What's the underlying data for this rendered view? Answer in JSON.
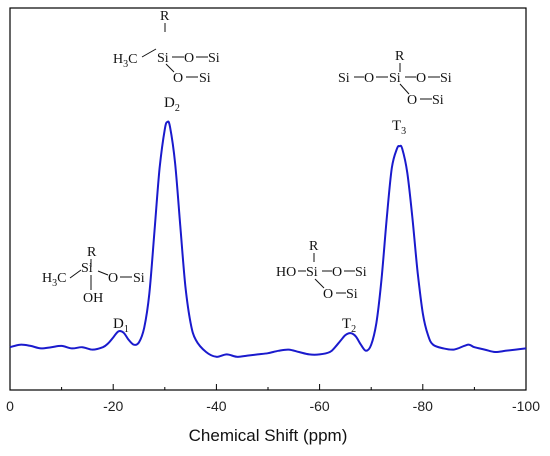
{
  "chart_data": {
    "type": "line",
    "title": "",
    "xlabel": "Chemical Shift (ppm)",
    "ylabel": "",
    "xlim": [
      0,
      -100
    ],
    "ylim": [
      0,
      1
    ],
    "x_reversed": true,
    "grid": false,
    "x_ticks": [
      0,
      -20,
      -40,
      -60,
      -80,
      -100
    ],
    "x_tick_labels": [
      "0",
      "-20",
      "-40",
      "-60",
      "-80",
      "-100"
    ],
    "line_color": "#1a1acd",
    "series": [
      {
        "x": [
          0,
          -2,
          -4,
          -6,
          -8,
          -10,
          -12,
          -14,
          -16,
          -18,
          -19,
          -20,
          -21,
          -22,
          -23,
          -24,
          -25,
          -26,
          -27,
          -28,
          -29,
          -30,
          -30.5,
          -31,
          -32,
          -33,
          -34,
          -35,
          -36,
          -38,
          -40,
          -42,
          -44,
          -46,
          -48,
          -50,
          -52,
          -54,
          -56,
          -58,
          -60,
          -62,
          -63,
          -64,
          -65,
          -66,
          -67,
          -68,
          -69,
          -70,
          -71,
          -72,
          -73,
          -74,
          -75,
          -75.5,
          -76,
          -77,
          -78,
          -79,
          -80,
          -81,
          -82,
          -84,
          -86,
          -88,
          -89,
          -90,
          -92,
          -94,
          -96,
          -98,
          -100
        ],
        "y": [
          0.02,
          0.03,
          0.025,
          0.015,
          0.02,
          0.025,
          0.015,
          0.02,
          0.01,
          0.02,
          0.035,
          0.06,
          0.085,
          0.08,
          0.05,
          0.03,
          0.04,
          0.1,
          0.24,
          0.5,
          0.76,
          0.92,
          0.95,
          0.93,
          0.78,
          0.52,
          0.27,
          0.12,
          0.05,
          0.0,
          -0.02,
          -0.01,
          -0.02,
          -0.015,
          -0.01,
          -0.005,
          0.005,
          0.01,
          0.0,
          -0.01,
          -0.01,
          0.0,
          0.02,
          0.045,
          0.07,
          0.078,
          0.065,
          0.03,
          0.005,
          0.03,
          0.12,
          0.3,
          0.55,
          0.76,
          0.84,
          0.85,
          0.84,
          0.74,
          0.55,
          0.33,
          0.16,
          0.07,
          0.03,
          0.015,
          0.01,
          0.025,
          0.03,
          0.02,
          0.01,
          0.0,
          0.005,
          0.01,
          0.015
        ]
      }
    ],
    "annotations": {
      "d1": {
        "label": "D",
        "sub": "1",
        "x": -21,
        "structure": {
          "r": "R",
          "h3c": "H",
          "h3c_sub": "3",
          "h3c_c": "C",
          "si": "Si",
          "o": "O",
          "si2": "Si",
          "oh": "OH"
        }
      },
      "d2": {
        "label": "D",
        "sub": "2",
        "x": -30.5,
        "structure": {
          "r": "R",
          "h3c": "H",
          "h3c_sub": "3",
          "h3c_c": "C",
          "si": "Si",
          "o1": "O",
          "si1": "Si",
          "o2": "O",
          "si2": "Si"
        }
      },
      "t2": {
        "label": "T",
        "sub": "2",
        "x": -66,
        "structure": {
          "r": "R",
          "ho": "HO",
          "si": "Si",
          "o1": "O",
          "si1": "Si",
          "o2": "O",
          "si2": "Si"
        }
      },
      "t3": {
        "label": "T",
        "sub": "3",
        "x": -75.5,
        "structure": {
          "r": "R",
          "si0": "Si",
          "o0": "O",
          "si": "Si",
          "o1": "O",
          "si1": "Si",
          "o2": "O",
          "si2": "Si"
        }
      }
    }
  }
}
